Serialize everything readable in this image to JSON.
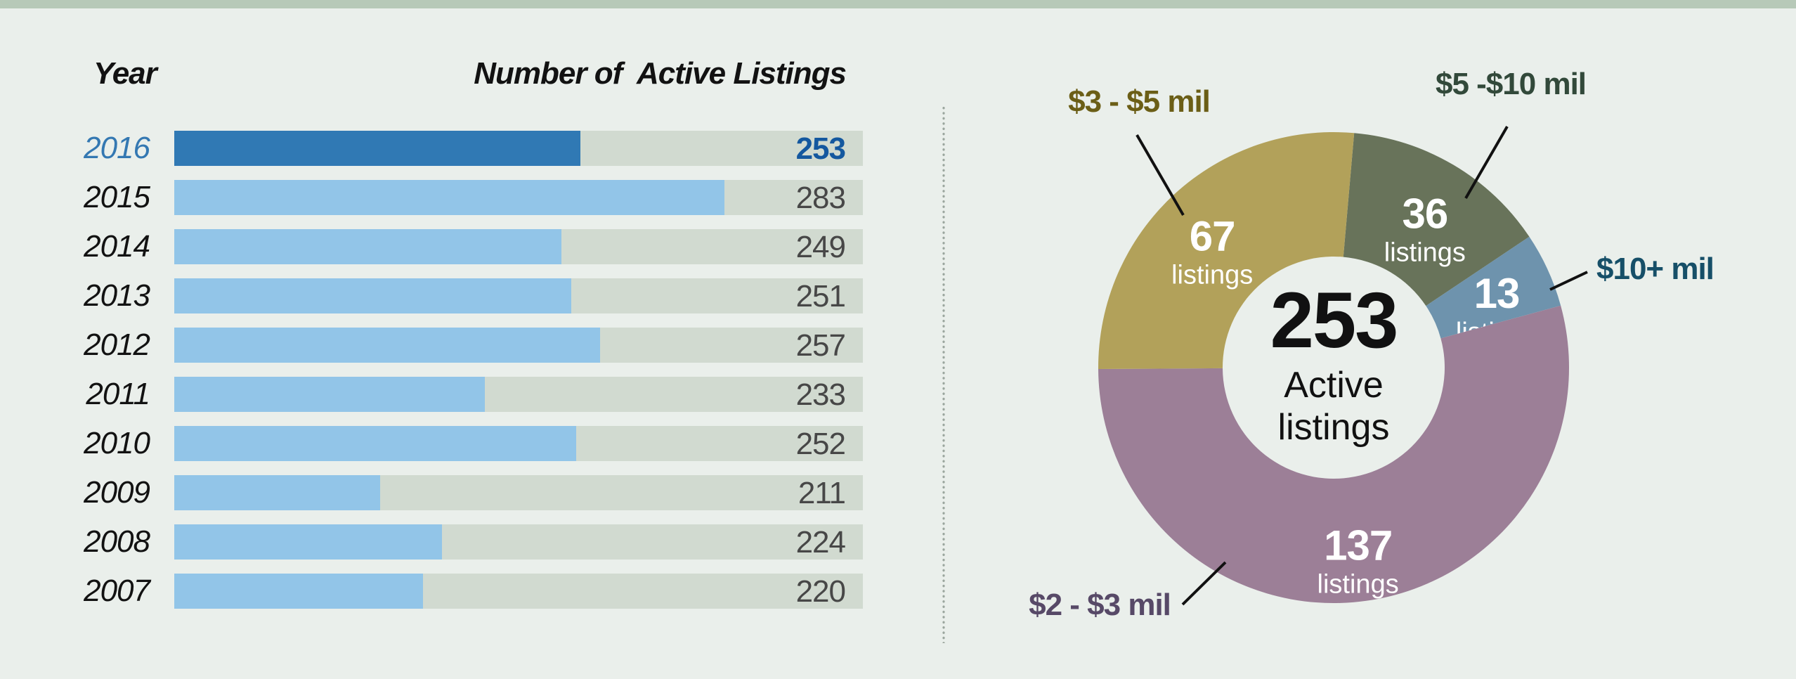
{
  "page": {
    "background": "#eaefeb",
    "accent_strip_color": "#b7c9b8"
  },
  "chart_data": [
    {
      "type": "bar",
      "orientation": "horizontal",
      "ylabel": "Year",
      "title": "Number of  Active Listings",
      "categories": [
        "2016",
        "2015",
        "2014",
        "2013",
        "2012",
        "2011",
        "2010",
        "2009",
        "2008",
        "2007"
      ],
      "values": [
        253,
        283,
        249,
        251,
        257,
        233,
        252,
        211,
        224,
        220
      ],
      "xlim": [
        168,
        312
      ],
      "grid": false,
      "legend": "none",
      "highlight_category": "2016",
      "bar_color": "#92c5e8",
      "highlight_bar_color": "#3079b4",
      "track_color": "#d1dad0",
      "category_color": "#121212",
      "highlight_category_color": "#3478b2",
      "value_color": "#474747",
      "highlight_value_color": "#14589f"
    },
    {
      "type": "pie",
      "donut": true,
      "direction": "clockwise",
      "start_angle_deg": 5,
      "center_value": "253",
      "center_label": "Active listings",
      "unit_label": "listings",
      "leader_line_color": "#111111",
      "slices": [
        {
          "id": "5-10mil",
          "label": "$5 -$10 mil",
          "value": 36,
          "color": "#68735a",
          "label_color": "#32493a"
        },
        {
          "id": "10plus-mil",
          "label": "$10+ mil",
          "value": 13,
          "color": "#6e93ad",
          "label_color": "#164f68"
        },
        {
          "id": "2-3mil",
          "label": "$2 - $3 mil",
          "value": 137,
          "color": "#9c7f97",
          "label_color": "#574967"
        },
        {
          "id": "3-5mil",
          "label": "$3 - $5 mil",
          "value": 67,
          "color": "#b2a15a",
          "label_color": "#6b5e16"
        }
      ]
    }
  ]
}
